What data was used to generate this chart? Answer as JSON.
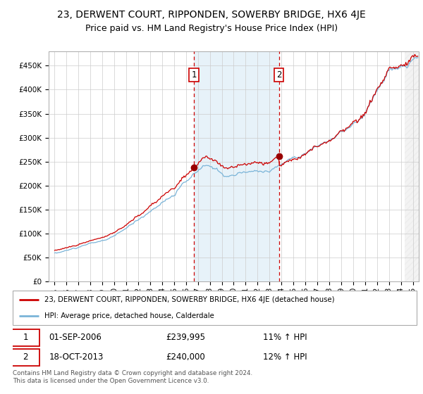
{
  "title": "23, DERWENT COURT, RIPPONDEN, SOWERBY BRIDGE, HX6 4JE",
  "subtitle": "Price paid vs. HM Land Registry's House Price Index (HPI)",
  "legend_line1": "23, DERWENT COURT, RIPPONDEN, SOWERBY BRIDGE, HX6 4JE (detached house)",
  "legend_line2": "HPI: Average price, detached house, Calderdale",
  "transaction1_date": "01-SEP-2006",
  "transaction1_price": "£239,995",
  "transaction1_hpi": "11% ↑ HPI",
  "transaction2_date": "18-OCT-2013",
  "transaction2_price": "£240,000",
  "transaction2_hpi": "12% ↑ HPI",
  "footer": "Contains HM Land Registry data © Crown copyright and database right 2024.\nThis data is licensed under the Open Government Licence v3.0.",
  "hpi_line_color": "#7ab4d8",
  "price_line_color": "#cc0000",
  "dot_color": "#990000",
  "annotation_box_color": "#cc0000",
  "vline_color": "#cc0000",
  "shaded_region_color": "#d8eaf5",
  "grid_color": "#cccccc",
  "background_color": "#ffffff",
  "ylim": [
    0,
    480000
  ],
  "yticks": [
    0,
    50000,
    100000,
    150000,
    200000,
    250000,
    300000,
    350000,
    400000,
    450000
  ],
  "ytick_labels": [
    "£0",
    "£50K",
    "£100K",
    "£150K",
    "£200K",
    "£250K",
    "£300K",
    "£350K",
    "£400K",
    "£450K"
  ],
  "xlim_start": 1994.5,
  "xlim_end": 2025.5,
  "transaction1_x": 2006.67,
  "transaction2_x": 2013.79,
  "transaction1_y": 239995,
  "transaction2_y": 240000,
  "title_fontsize": 10,
  "subtitle_fontsize": 9,
  "tick_fontsize": 7.5,
  "legend_fontsize": 8
}
